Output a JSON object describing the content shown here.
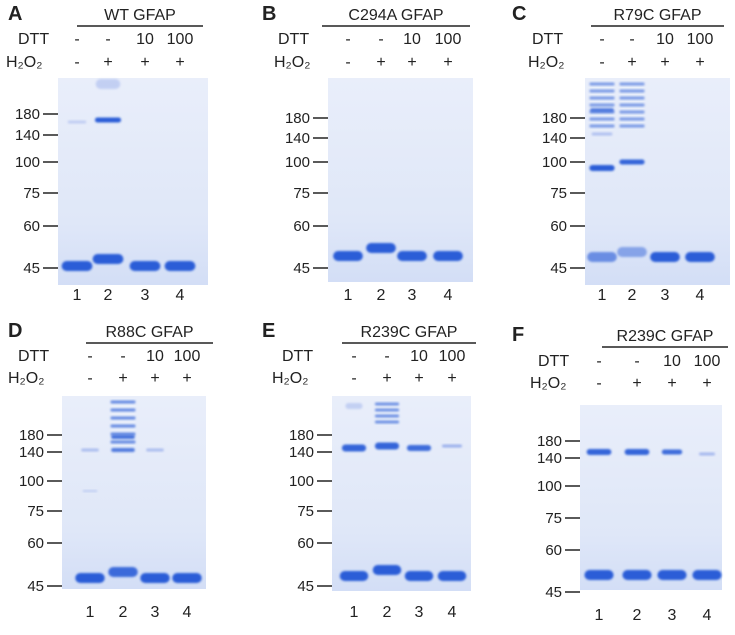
{
  "row_labels": {
    "dtt": "DTT",
    "h2o2": "H₂O₂"
  },
  "lane_numbers": [
    "1",
    "2",
    "3",
    "4"
  ],
  "dtt_values": [
    "-",
    "-",
    "10",
    "100"
  ],
  "h2o2_values": [
    "-",
    "+",
    "+",
    "+"
  ],
  "mw_markers": [
    "180",
    "140",
    "100",
    "75",
    "60",
    "45"
  ],
  "panels": [
    {
      "letter": "A",
      "title": "WT GFAP"
    },
    {
      "letter": "B",
      "title": "C294A GFAP"
    },
    {
      "letter": "C",
      "title": "R79C GFAP"
    },
    {
      "letter": "D",
      "title": "R88C GFAP"
    },
    {
      "letter": "E",
      "title": "R239C GFAP"
    },
    {
      "letter": "F",
      "title": "R239C GFAP"
    }
  ],
  "colors": {
    "gel": "#e3eaf8",
    "band": "#2456d6",
    "band_faint": "#7d98e6"
  }
}
